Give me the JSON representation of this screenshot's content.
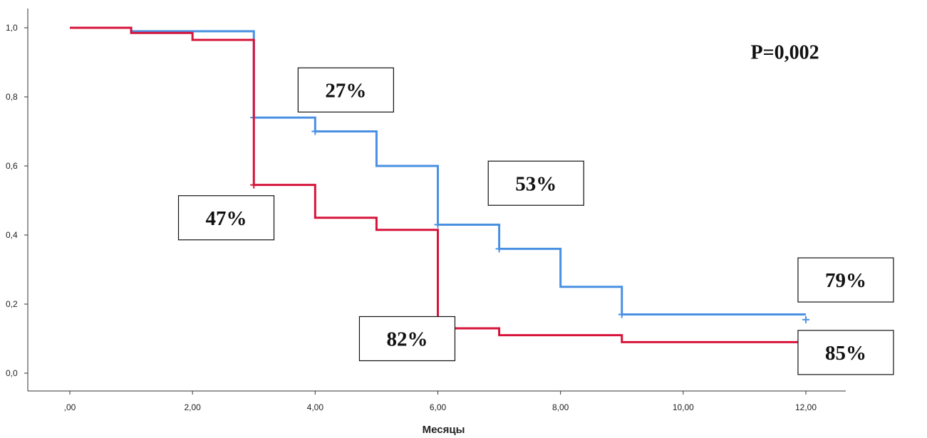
{
  "chart_data": {
    "type": "line",
    "title": "",
    "xlabel": "Месяцы",
    "ylabel": "",
    "xlim": [
      -0.5,
      12.8
    ],
    "ylim": [
      -0.05,
      1.05
    ],
    "x_ticks": [
      0,
      2,
      4,
      6,
      8,
      10,
      12
    ],
    "x_tick_labels": [
      ",00",
      "2,00",
      "4,00",
      "6,00",
      "8,00",
      "10,00",
      "12,00"
    ],
    "y_ticks": [
      0,
      0.2,
      0.4,
      0.6,
      0.8,
      1.0
    ],
    "y_tick_labels": [
      "0,0",
      "0,2",
      "0,4",
      "0,6",
      "0,8",
      "1,0"
    ],
    "grid": false,
    "series": [
      {
        "color": "#4a90e2",
        "step_points": [
          {
            "x": 0,
            "y": 1.0
          },
          {
            "x": 1,
            "y": 0.99
          },
          {
            "x": 3,
            "y": 0.74
          },
          {
            "x": 4,
            "y": 0.7
          },
          {
            "x": 5,
            "y": 0.6
          },
          {
            "x": 6,
            "y": 0.43
          },
          {
            "x": 7,
            "y": 0.36
          },
          {
            "x": 8,
            "y": 0.25
          },
          {
            "x": 9,
            "y": 0.17
          },
          {
            "x": 12,
            "y": 0.17
          }
        ],
        "censor_marks": [
          {
            "x": 3,
            "y": 0.74
          },
          {
            "x": 4,
            "y": 0.7
          },
          {
            "x": 6,
            "y": 0.43
          },
          {
            "x": 7,
            "y": 0.36
          },
          {
            "x": 9,
            "y": 0.17
          },
          {
            "x": 12,
            "y": 0.155
          }
        ]
      },
      {
        "color": "#d6143a",
        "step_points": [
          {
            "x": 0,
            "y": 1.0
          },
          {
            "x": 1,
            "y": 0.985
          },
          {
            "x": 2,
            "y": 0.965
          },
          {
            "x": 3,
            "y": 0.545
          },
          {
            "x": 4,
            "y": 0.45
          },
          {
            "x": 5,
            "y": 0.415
          },
          {
            "x": 6,
            "y": 0.13
          },
          {
            "x": 7,
            "y": 0.11
          },
          {
            "x": 9,
            "y": 0.09
          },
          {
            "x": 12,
            "y": 0.09
          }
        ],
        "censor_marks": [
          {
            "x": 3,
            "y": 0.545
          },
          {
            "x": 12,
            "y": 0.07
          }
        ]
      }
    ],
    "annotations": [
      {
        "text": "27%",
        "x": 4.5,
        "y": 0.82
      },
      {
        "text": "47%",
        "x": 2.55,
        "y": 0.45
      },
      {
        "text": "53%",
        "x": 7.6,
        "y": 0.55
      },
      {
        "text": "82%",
        "x": 5.5,
        "y": 0.1
      },
      {
        "text": "79%",
        "x": 12.65,
        "y": 0.27
      },
      {
        "text": "85%",
        "x": 12.65,
        "y": 0.06
      }
    ],
    "p_value": {
      "text": "P=0,002",
      "x": 11.1,
      "y": 0.91
    }
  }
}
